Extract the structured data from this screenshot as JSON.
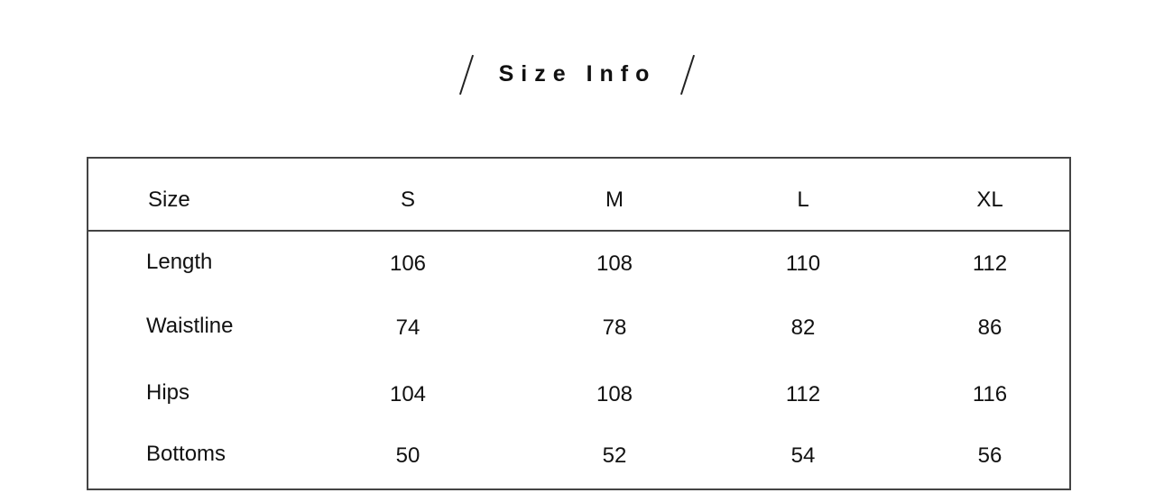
{
  "title": "Size Info",
  "table": {
    "columns": [
      "Size",
      "S",
      "M",
      "L",
      "XL"
    ],
    "rows": [
      {
        "label": "Length",
        "values": [
          "106",
          "108",
          "110",
          "112"
        ]
      },
      {
        "label": "Waistline",
        "values": [
          "74",
          "78",
          "82",
          "86"
        ]
      },
      {
        "label": "Hips",
        "values": [
          "104",
          "108",
          "112",
          "116"
        ]
      },
      {
        "label": "Bottoms",
        "values": [
          "50",
          "52",
          "54",
          "56"
        ]
      }
    ]
  }
}
